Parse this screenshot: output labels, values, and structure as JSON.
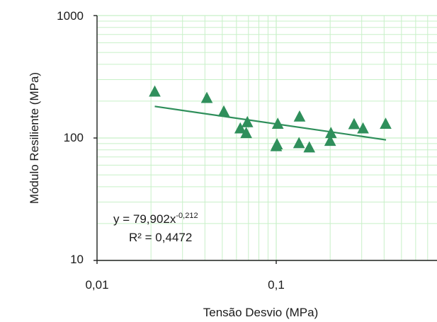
{
  "chart_data": {
    "type": "scatter",
    "title": "",
    "xlabel": "Tensão Desvio (MPa)",
    "ylabel": "Módulo Resiliente (MPa)",
    "x_scale": "log",
    "y_scale": "log",
    "xlim": [
      0.01,
      1
    ],
    "ylim": [
      10,
      1000
    ],
    "x_tick_labels": [
      "0,01",
      "0,1"
    ],
    "y_tick_labels": [
      "1000",
      "100",
      "10"
    ],
    "grid": "minor and major, light green",
    "marker": "triangle",
    "colors": {
      "marker": "#2f8f5b",
      "trendline": "#2f8f5b",
      "grid": "#c8f0c8",
      "axis": "#222222"
    },
    "series": [
      {
        "x": [
          0.021,
          0.041,
          0.051,
          0.063,
          0.068,
          0.069,
          0.1,
          0.101,
          0.102,
          0.134,
          0.135,
          0.153,
          0.2,
          0.202,
          0.272,
          0.305,
          0.408
        ],
        "y": [
          240,
          213,
          165,
          120,
          110,
          135,
          86,
          89,
          131,
          91,
          150,
          84,
          95,
          110,
          130,
          120,
          131
        ]
      }
    ],
    "trendline": {
      "type": "power",
      "coefficient": 79.902,
      "exponent": -0.212,
      "x_range": [
        0.021,
        0.41
      ],
      "equation_prefix": "y = 79,902x",
      "equation_exponent": "-0,212",
      "r_squared_text": "R² = 0,4472"
    }
  }
}
